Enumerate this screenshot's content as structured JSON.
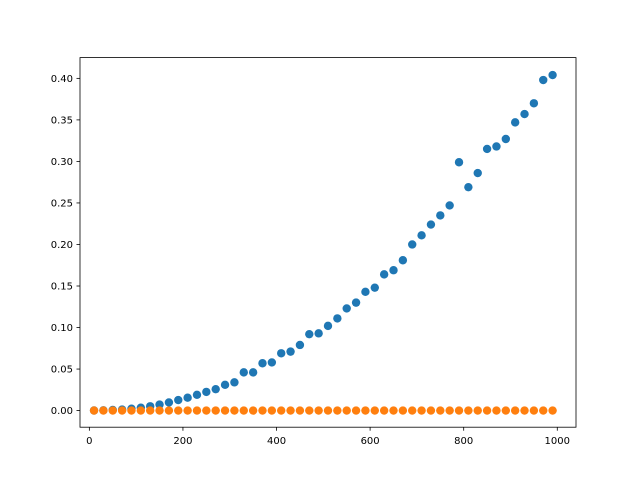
{
  "chart_data": {
    "type": "scatter",
    "title": "",
    "xlabel": "",
    "ylabel": "",
    "xlim": [
      -20,
      1040
    ],
    "ylim": [
      -0.02,
      0.425
    ],
    "xticks": [
      0,
      200,
      400,
      600,
      800,
      1000
    ],
    "yticks": [
      0.0,
      0.05,
      0.1,
      0.15,
      0.2,
      0.25,
      0.3,
      0.35,
      0.4
    ],
    "xtick_labels": [
      "0",
      "200",
      "400",
      "600",
      "800",
      "1000"
    ],
    "ytick_labels": [
      "0.00",
      "0.05",
      "0.10",
      "0.15",
      "0.20",
      "0.25",
      "0.30",
      "0.35",
      "0.40"
    ],
    "grid": false,
    "legend": "none",
    "x": [
      10,
      30,
      50,
      70,
      90,
      110,
      130,
      150,
      170,
      190,
      210,
      230,
      250,
      270,
      290,
      310,
      330,
      350,
      370,
      390,
      410,
      430,
      450,
      470,
      490,
      510,
      530,
      550,
      570,
      590,
      610,
      630,
      650,
      670,
      690,
      710,
      730,
      750,
      770,
      790,
      810,
      830,
      850,
      870,
      890,
      910,
      930,
      950,
      970,
      990
    ],
    "series": [
      {
        "color": "#1f77b4",
        "values": [
          0.0001,
          0.0003,
          0.0007,
          0.0012,
          0.0022,
          0.0035,
          0.0052,
          0.0072,
          0.0098,
          0.0127,
          0.0155,
          0.019,
          0.0225,
          0.0258,
          0.031,
          0.034,
          0.046,
          0.046,
          0.057,
          0.058,
          0.069,
          0.071,
          0.079,
          0.092,
          0.093,
          0.102,
          0.111,
          0.123,
          0.13,
          0.143,
          0.148,
          0.164,
          0.169,
          0.181,
          0.2,
          0.211,
          0.224,
          0.235,
          0.247,
          0.299,
          0.269,
          0.286,
          0.315,
          0.318,
          0.327,
          0.347,
          0.357,
          0.37,
          0.398,
          0.404
        ]
      },
      {
        "color": "#ff7f0e",
        "values": [
          0,
          0,
          0,
          0,
          0,
          0,
          0,
          0,
          0,
          0,
          0,
          0,
          0,
          0,
          0,
          0,
          0,
          0,
          0,
          0,
          0,
          0,
          0,
          0,
          0,
          0,
          0,
          0,
          0,
          0,
          0,
          0,
          0,
          0,
          0,
          0,
          0,
          0,
          0,
          0,
          0,
          0,
          0,
          0,
          0,
          0,
          0,
          0,
          0,
          0
        ]
      }
    ]
  }
}
